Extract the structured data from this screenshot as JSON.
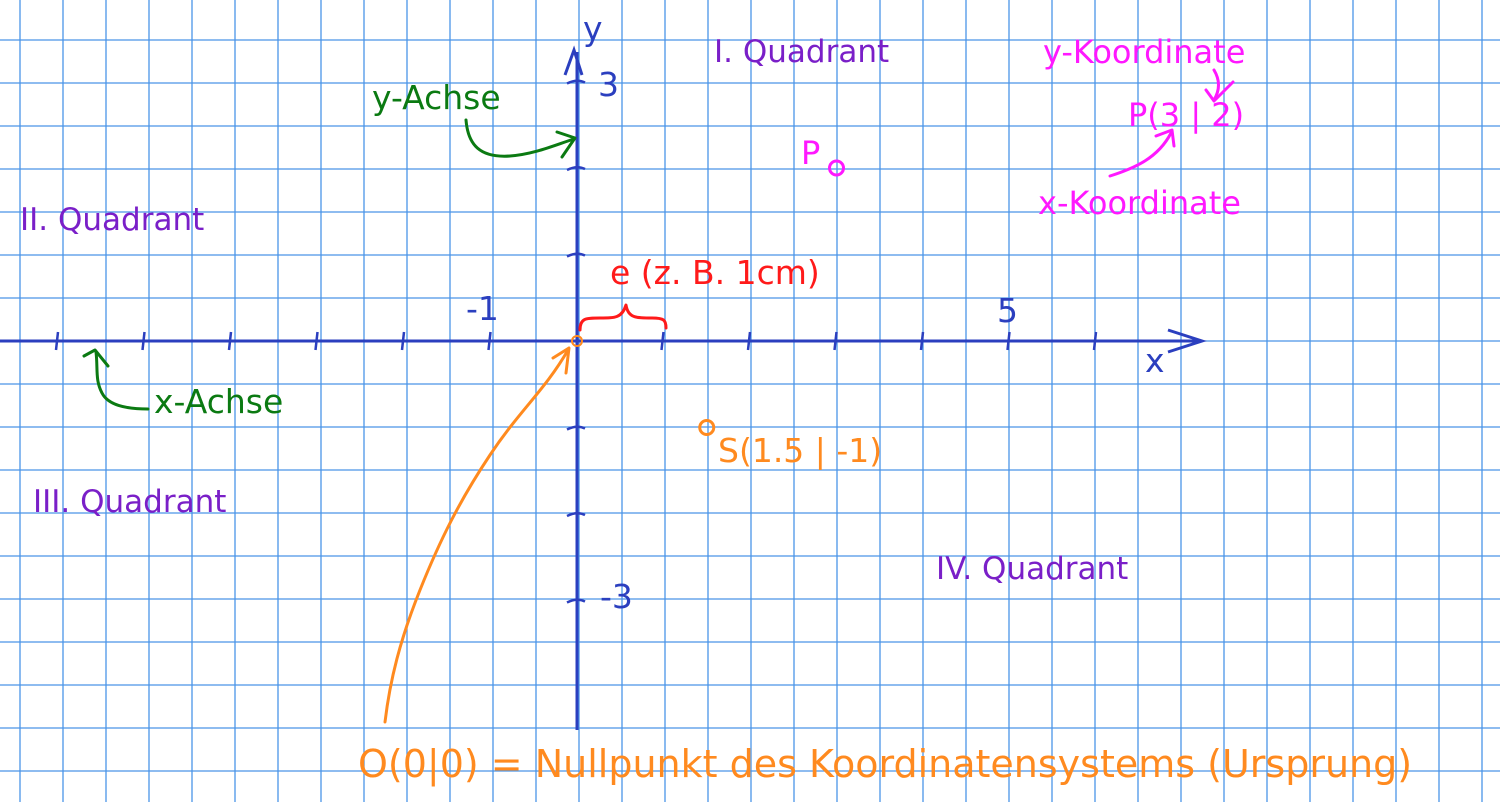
{
  "colors": {
    "grid": "#4a95e8",
    "axes": "#2b3fbf",
    "quadrant_labels": "#7a1fc8",
    "axis_notes": "#0b7a12",
    "point_P": "#ff18ff",
    "unit_note": "#ff1a1a",
    "origin_note": "#ff8a1f"
  },
  "axes": {
    "x_name": "x",
    "y_name": "y",
    "x_tick_labels": {
      "minus_one": "-1",
      "five": "5"
    },
    "y_tick_labels": {
      "three": "3",
      "minus_three": "-3"
    }
  },
  "quadrants": {
    "q1": "I. Quadrant",
    "q2": "II. Quadrant",
    "q3": "III. Quadrant",
    "q4": "IV. Quadrant"
  },
  "annotations": {
    "y_axis": "y-Achse",
    "x_axis": "x-Achse",
    "unit": "e (z. B. 1cm)",
    "y_coordinate": "y-Koordinate",
    "x_coordinate": "x-Koordinate",
    "point_P_formula": "P(3 | 2)",
    "origin": "O(0|0) = Nullpunkt des Koordinatensystems (Ursprung)"
  },
  "points": [
    {
      "id": "P",
      "label": "P",
      "x": 3,
      "y": 2
    },
    {
      "id": "S",
      "label": "S(1.5 | -1)",
      "x": 1.5,
      "y": -1
    },
    {
      "id": "O",
      "label": "",
      "x": 0,
      "y": 0
    }
  ]
}
